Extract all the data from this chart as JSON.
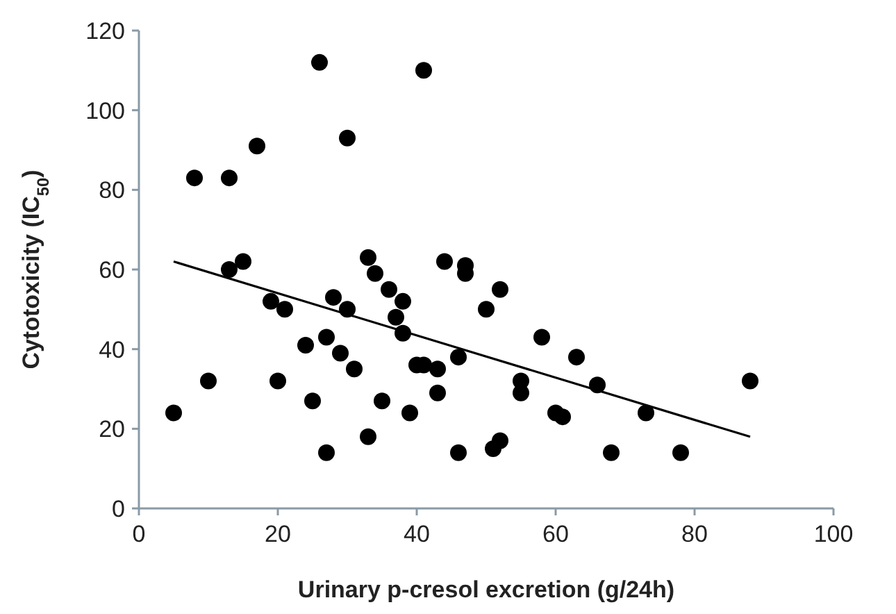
{
  "chart_data": {
    "type": "scatter",
    "xlabel": "Urinary p-cresol excretion (g/24h)",
    "ylabel": "Cytotoxicity (IC$_{50}$)",
    "xlim": [
      0,
      100
    ],
    "xticks": [
      0,
      20,
      40,
      60,
      80,
      100
    ],
    "ylim": [
      0,
      120
    ],
    "yticks": [
      0,
      20,
      40,
      60,
      80,
      100,
      120
    ],
    "grid": false,
    "marker": "circle",
    "series": [
      {
        "color": "#000000",
        "x": [
          5,
          8,
          10,
          13,
          13,
          15,
          17,
          19,
          20,
          21,
          24,
          25,
          26,
          27,
          27,
          28,
          29,
          30,
          30,
          31,
          33,
          33,
          34,
          35,
          36,
          37,
          38,
          38,
          39,
          40,
          41,
          41,
          43,
          43,
          44,
          46,
          46,
          47,
          47,
          50,
          51,
          52,
          52,
          55,
          55,
          58,
          60,
          61,
          63,
          66,
          68,
          73,
          78,
          88
        ],
        "values": [
          24,
          83,
          32,
          83,
          60,
          62,
          91,
          52,
          32,
          50,
          41,
          27,
          112,
          14,
          43,
          53,
          39,
          93,
          50,
          35,
          18,
          63,
          59,
          27,
          55,
          48,
          44,
          52,
          24,
          36,
          36,
          110,
          29,
          35,
          62,
          14,
          38,
          61,
          59,
          50,
          15,
          17,
          55,
          32,
          29,
          43,
          24,
          23,
          38,
          31,
          14,
          24,
          14,
          32
        ]
      },
      {
        "type": "line",
        "color": "#000000",
        "marker": "none",
        "x": [
          5,
          88
        ],
        "values": [
          62,
          18
        ]
      }
    ]
  }
}
